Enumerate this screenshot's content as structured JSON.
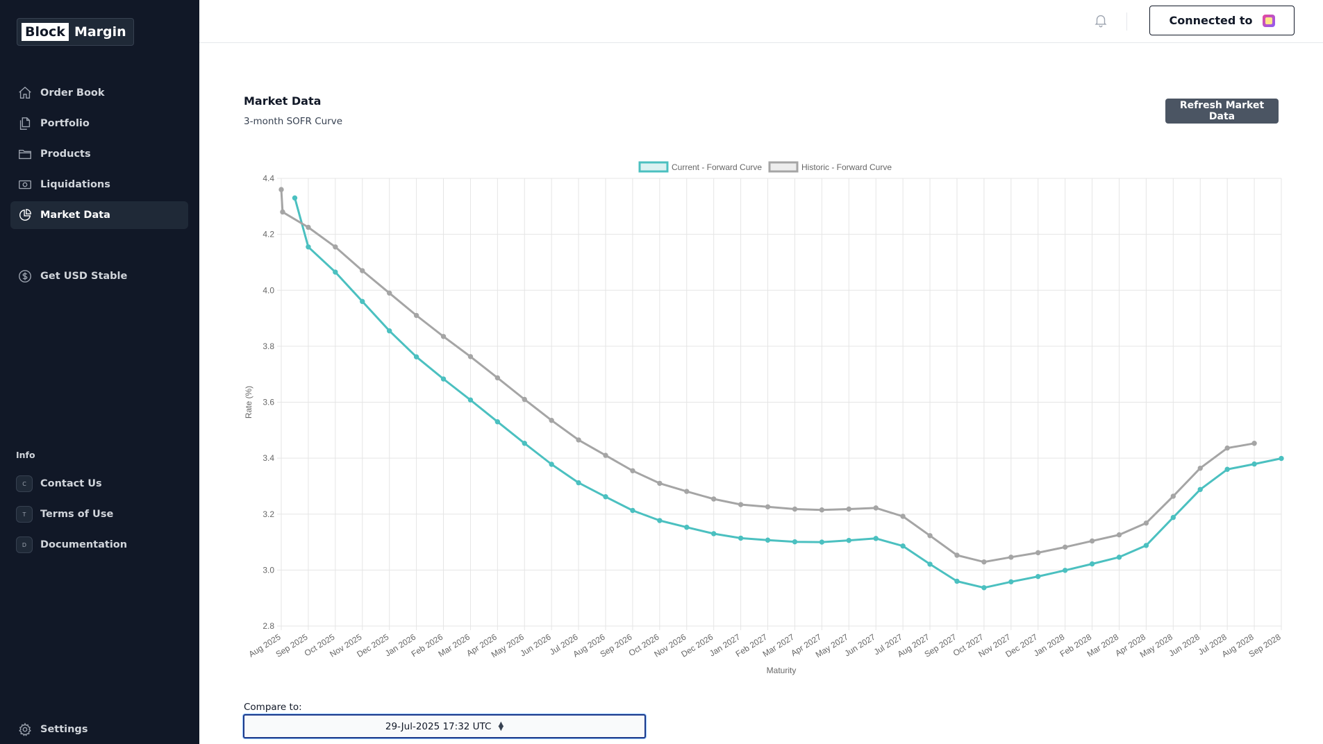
{
  "logo": {
    "part1": "Block",
    "part2": "Margin"
  },
  "sidebar": {
    "items": [
      {
        "label": "Order Book",
        "icon": "home-icon"
      },
      {
        "label": "Portfolio",
        "icon": "documents-icon"
      },
      {
        "label": "Products",
        "icon": "folder-icon"
      },
      {
        "label": "Liquidations",
        "icon": "cash-icon"
      },
      {
        "label": "Market Data",
        "icon": "pie-chart-icon",
        "active": true
      },
      {
        "label": "Get USD Stable",
        "icon": "dollar-circle-icon"
      }
    ],
    "info_heading": "Info",
    "info_items": [
      {
        "badge": "C",
        "label": "Contact Us"
      },
      {
        "badge": "T",
        "label": "Terms of Use"
      },
      {
        "badge": "D",
        "label": "Documentation"
      }
    ],
    "settings_label": "Settings"
  },
  "header": {
    "connect_label": "Connected to"
  },
  "main": {
    "title": "Market Data",
    "subtitle": "3-month SOFR Curve",
    "refresh_label": "Refresh Market Data",
    "compare_label": "Compare to:",
    "compare_value": "29-Jul-2025 17:32 UTC"
  },
  "chart_data": {
    "type": "line",
    "xlabel": "Maturity",
    "ylabel": "Rate (%)",
    "ylim": [
      2.8,
      4.4
    ],
    "yticks": [
      "4.4",
      "4.2",
      "4.0",
      "3.8",
      "3.6",
      "3.4",
      "3.2",
      "3.0",
      "2.8"
    ],
    "grid": true,
    "legend_position": "top-center",
    "categories": [
      "Aug 2025",
      "Sep 2025",
      "Oct 2025",
      "Nov 2025",
      "Dec 2025",
      "Jan 2026",
      "Feb 2026",
      "Mar 2026",
      "Apr 2026",
      "May 2026",
      "Jun 2026",
      "Jul 2026",
      "Aug 2026",
      "Sep 2026",
      "Oct 2026",
      "Nov 2026",
      "Dec 2026",
      "Jan 2027",
      "Feb 2027",
      "Mar 2027",
      "Apr 2027",
      "May 2027",
      "Jun 2027",
      "Jul 2027",
      "Aug 2027",
      "Sep 2027",
      "Oct 2027",
      "Nov 2027",
      "Dec 2027",
      "Jan 2028",
      "Feb 2028",
      "Mar 2028",
      "Apr 2028",
      "May 2028",
      "Jun 2028",
      "Jul 2028",
      "Aug 2028",
      "Sep 2028"
    ],
    "series": [
      {
        "name": "Current - Forward Curve",
        "color": "#4bc0c0",
        "points": [
          {
            "x": 0.5,
            "y": 4.33
          },
          {
            "x": 1,
            "y": 4.155
          },
          {
            "x": 2,
            "y": 4.065
          },
          {
            "x": 3,
            "y": 3.96
          },
          {
            "x": 4,
            "y": 3.855
          },
          {
            "x": 5,
            "y": 3.762
          },
          {
            "x": 6,
            "y": 3.683
          },
          {
            "x": 7,
            "y": 3.608
          },
          {
            "x": 8,
            "y": 3.53
          },
          {
            "x": 9,
            "y": 3.453
          },
          {
            "x": 10,
            "y": 3.378
          },
          {
            "x": 11,
            "y": 3.312
          },
          {
            "x": 12,
            "y": 3.262
          },
          {
            "x": 13,
            "y": 3.213
          },
          {
            "x": 14,
            "y": 3.177
          },
          {
            "x": 15,
            "y": 3.153
          },
          {
            "x": 16,
            "y": 3.13
          },
          {
            "x": 17,
            "y": 3.114
          },
          {
            "x": 18,
            "y": 3.107
          },
          {
            "x": 19,
            "y": 3.101
          },
          {
            "x": 20,
            "y": 3.1
          },
          {
            "x": 21,
            "y": 3.106
          },
          {
            "x": 22,
            "y": 3.113
          },
          {
            "x": 23,
            "y": 3.086
          },
          {
            "x": 24,
            "y": 3.021
          },
          {
            "x": 25,
            "y": 2.96
          },
          {
            "x": 26,
            "y": 2.937
          },
          {
            "x": 27,
            "y": 2.958
          },
          {
            "x": 28,
            "y": 2.977
          },
          {
            "x": 29,
            "y": 2.999
          },
          {
            "x": 30,
            "y": 3.022
          },
          {
            "x": 31,
            "y": 3.046
          },
          {
            "x": 32,
            "y": 3.088
          },
          {
            "x": 33,
            "y": 3.188
          },
          {
            "x": 34,
            "y": 3.288
          },
          {
            "x": 35,
            "y": 3.36
          },
          {
            "x": 36,
            "y": 3.379
          },
          {
            "x": 37,
            "y": 3.399
          }
        ]
      },
      {
        "name": "Historic - Forward Curve",
        "color": "#a5a5a5",
        "points": [
          {
            "x": 0,
            "y": 4.36
          },
          {
            "x": 0.05,
            "y": 4.28
          },
          {
            "x": 1,
            "y": 4.225
          },
          {
            "x": 2,
            "y": 4.155
          },
          {
            "x": 3,
            "y": 4.07
          },
          {
            "x": 4,
            "y": 3.99
          },
          {
            "x": 5,
            "y": 3.91
          },
          {
            "x": 6,
            "y": 3.835
          },
          {
            "x": 7,
            "y": 3.763
          },
          {
            "x": 8,
            "y": 3.687
          },
          {
            "x": 9,
            "y": 3.61
          },
          {
            "x": 10,
            "y": 3.535
          },
          {
            "x": 11,
            "y": 3.465
          },
          {
            "x": 12,
            "y": 3.41
          },
          {
            "x": 13,
            "y": 3.355
          },
          {
            "x": 14,
            "y": 3.31
          },
          {
            "x": 15,
            "y": 3.281
          },
          {
            "x": 16,
            "y": 3.254
          },
          {
            "x": 17,
            "y": 3.234
          },
          {
            "x": 18,
            "y": 3.226
          },
          {
            "x": 19,
            "y": 3.218
          },
          {
            "x": 20,
            "y": 3.215
          },
          {
            "x": 21,
            "y": 3.218
          },
          {
            "x": 22,
            "y": 3.222
          },
          {
            "x": 23,
            "y": 3.192
          },
          {
            "x": 24,
            "y": 3.123
          },
          {
            "x": 25,
            "y": 3.053
          },
          {
            "x": 26,
            "y": 3.029
          },
          {
            "x": 27,
            "y": 3.046
          },
          {
            "x": 28,
            "y": 3.062
          },
          {
            "x": 29,
            "y": 3.082
          },
          {
            "x": 30,
            "y": 3.104
          },
          {
            "x": 31,
            "y": 3.126
          },
          {
            "x": 32,
            "y": 3.168
          },
          {
            "x": 33,
            "y": 3.264
          },
          {
            "x": 34,
            "y": 3.364
          },
          {
            "x": 35,
            "y": 3.436
          },
          {
            "x": 36,
            "y": 3.453
          }
        ]
      }
    ]
  }
}
